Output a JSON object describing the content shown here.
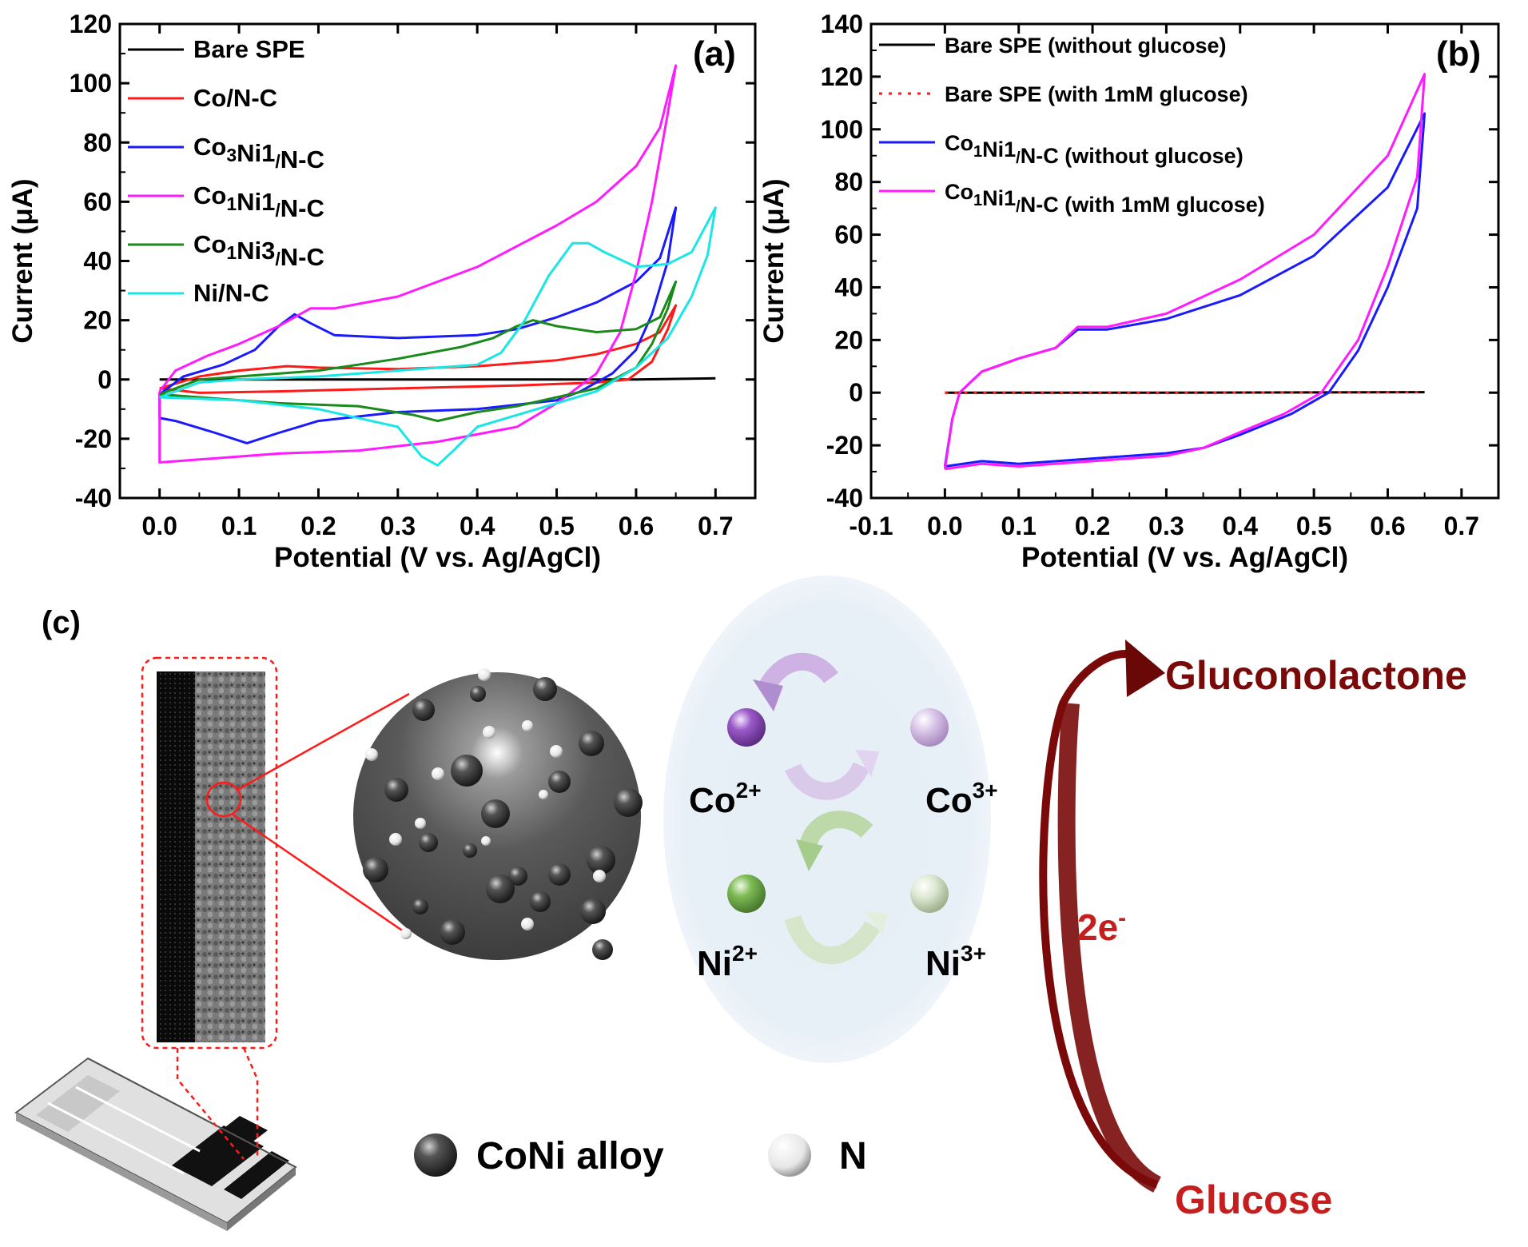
{
  "panel_c": {
    "label": "(c)",
    "legend": {
      "alloy": "CoNi alloy",
      "n": "N"
    },
    "ions": {
      "co2": "Co",
      "co2_sup": "2+",
      "co3": "Co",
      "co3_sup": "3+",
      "ni2": "Ni",
      "ni2_sup": "2+",
      "ni3": "Ni",
      "ni3_sup": "3+"
    },
    "product": "Gluconolactone",
    "reactant": "Glucose",
    "electrons": "2e",
    "electrons_sup": "-",
    "colors": {
      "dark_red": "#7a0a0a",
      "red": "#c41e1e",
      "co_ball": "#9b59c8",
      "co3_ball": "#d9c4e8",
      "ni_ball": "#7dbb55",
      "ni3_ball": "#dde8d2",
      "bubble": "#e8f0f7"
    }
  },
  "chart_data": [
    {
      "type": "line",
      "panel_label": "(a)",
      "xlabel": "Potential (V vs. Ag/AgCl)",
      "ylabel": "Current (μA)",
      "xlim": [
        -0.05,
        0.75
      ],
      "ylim": [
        -40,
        120
      ],
      "xticks": [
        0.0,
        0.1,
        0.2,
        0.3,
        0.4,
        0.5,
        0.6,
        0.7
      ],
      "xtick_labels": [
        "0.0",
        "0.1",
        "0.2",
        "0.3",
        "0.4",
        "0.5",
        "0.6",
        "0.7"
      ],
      "yticks": [
        -40,
        -20,
        0,
        20,
        40,
        60,
        80,
        100,
        120
      ],
      "ytick_labels": [
        "-40",
        "-20",
        "0",
        "20",
        "40",
        "60",
        "80",
        "100",
        "120"
      ],
      "legend": "top-left",
      "series": [
        {
          "name": "Bare SPE",
          "sub": [],
          "color": "#000000",
          "dash": "",
          "points": [
            [
              0.0,
              0
            ],
            [
              0.2,
              0
            ],
            [
              0.4,
              0
            ],
            [
              0.6,
              0
            ],
            [
              0.7,
              0.4
            ]
          ]
        },
        {
          "name": "Co/N-C",
          "sub": [],
          "color": "#ff1a1a",
          "dash": "",
          "points": [
            [
              0.0,
              -3
            ],
            [
              0.05,
              1
            ],
            [
              0.1,
              3
            ],
            [
              0.16,
              4.5
            ],
            [
              0.2,
              4
            ],
            [
              0.3,
              3.5
            ],
            [
              0.4,
              4.5
            ],
            [
              0.5,
              6.5
            ],
            [
              0.55,
              8.5
            ],
            [
              0.6,
              12
            ],
            [
              0.63,
              16
            ],
            [
              0.65,
              25
            ],
            [
              0.64,
              17
            ],
            [
              0.62,
              6
            ],
            [
              0.59,
              0
            ],
            [
              0.55,
              -1
            ],
            [
              0.45,
              -2
            ],
            [
              0.3,
              -3
            ],
            [
              0.15,
              -4
            ],
            [
              0.05,
              -4.5
            ],
            [
              0.0,
              -3
            ]
          ]
        },
        {
          "name": "Co3Ni1/N-C",
          "sub": [
            2,
            6
          ],
          "color": "#1a1aff",
          "dash": "",
          "points": [
            [
              0.0,
              -5
            ],
            [
              0.03,
              1
            ],
            [
              0.08,
              5
            ],
            [
              0.12,
              10
            ],
            [
              0.15,
              18
            ],
            [
              0.17,
              22
            ],
            [
              0.19,
              19
            ],
            [
              0.22,
              15
            ],
            [
              0.3,
              14
            ],
            [
              0.4,
              15
            ],
            [
              0.45,
              17
            ],
            [
              0.5,
              21
            ],
            [
              0.55,
              26
            ],
            [
              0.6,
              33
            ],
            [
              0.63,
              41
            ],
            [
              0.65,
              58
            ],
            [
              0.64,
              40
            ],
            [
              0.62,
              22
            ],
            [
              0.6,
              10
            ],
            [
              0.57,
              2
            ],
            [
              0.53,
              -4
            ],
            [
              0.5,
              -7
            ],
            [
              0.4,
              -10
            ],
            [
              0.3,
              -11
            ],
            [
              0.2,
              -14
            ],
            [
              0.15,
              -18
            ],
            [
              0.11,
              -21.5
            ],
            [
              0.07,
              -18
            ],
            [
              0.02,
              -14
            ],
            [
              0.0,
              -13
            ],
            [
              0.0,
              -5
            ]
          ]
        },
        {
          "name": "Co1Ni1/N-C",
          "sub": [
            2,
            6
          ],
          "color": "#ff1aff",
          "dash": "",
          "points": [
            [
              0.0,
              -4
            ],
            [
              0.02,
              3
            ],
            [
              0.06,
              8
            ],
            [
              0.1,
              12
            ],
            [
              0.15,
              18
            ],
            [
              0.19,
              24
            ],
            [
              0.22,
              24
            ],
            [
              0.3,
              28
            ],
            [
              0.4,
              38
            ],
            [
              0.5,
              52
            ],
            [
              0.55,
              60
            ],
            [
              0.6,
              72
            ],
            [
              0.63,
              85
            ],
            [
              0.65,
              106
            ],
            [
              0.64,
              90
            ],
            [
              0.62,
              60
            ],
            [
              0.6,
              36
            ],
            [
              0.58,
              16
            ],
            [
              0.55,
              2
            ],
            [
              0.5,
              -8
            ],
            [
              0.45,
              -16
            ],
            [
              0.35,
              -21
            ],
            [
              0.25,
              -24
            ],
            [
              0.15,
              -25
            ],
            [
              0.1,
              -26
            ],
            [
              0.05,
              -27
            ],
            [
              0.0,
              -28
            ],
            [
              0.0,
              -4
            ]
          ]
        },
        {
          "name": "Co1Ni3/N-C",
          "sub": [
            2,
            6
          ],
          "color": "#1a8a1a",
          "dash": "",
          "points": [
            [
              0.0,
              -5
            ],
            [
              0.05,
              0
            ],
            [
              0.1,
              1
            ],
            [
              0.2,
              3
            ],
            [
              0.3,
              7
            ],
            [
              0.38,
              11
            ],
            [
              0.42,
              14
            ],
            [
              0.45,
              18
            ],
            [
              0.47,
              20
            ],
            [
              0.5,
              18
            ],
            [
              0.55,
              16
            ],
            [
              0.6,
              17
            ],
            [
              0.63,
              21
            ],
            [
              0.65,
              33
            ],
            [
              0.64,
              24
            ],
            [
              0.62,
              12
            ],
            [
              0.6,
              4
            ],
            [
              0.55,
              -3
            ],
            [
              0.5,
              -6
            ],
            [
              0.45,
              -9
            ],
            [
              0.4,
              -11
            ],
            [
              0.35,
              -14
            ],
            [
              0.32,
              -12
            ],
            [
              0.25,
              -9
            ],
            [
              0.15,
              -8
            ],
            [
              0.05,
              -6
            ],
            [
              0.0,
              -5
            ]
          ]
        },
        {
          "name": "Ni/N-C",
          "sub": [],
          "color": "#1ae6e6",
          "dash": "",
          "points": [
            [
              0.0,
              -6
            ],
            [
              0.05,
              -1
            ],
            [
              0.1,
              0
            ],
            [
              0.2,
              1
            ],
            [
              0.3,
              3
            ],
            [
              0.4,
              5
            ],
            [
              0.43,
              9
            ],
            [
              0.46,
              20
            ],
            [
              0.49,
              35
            ],
            [
              0.52,
              46
            ],
            [
              0.54,
              46
            ],
            [
              0.56,
              43
            ],
            [
              0.6,
              38
            ],
            [
              0.64,
              39
            ],
            [
              0.67,
              43
            ],
            [
              0.7,
              58
            ],
            [
              0.69,
              42
            ],
            [
              0.67,
              28
            ],
            [
              0.64,
              14
            ],
            [
              0.6,
              4
            ],
            [
              0.55,
              -4
            ],
            [
              0.5,
              -8
            ],
            [
              0.45,
              -12
            ],
            [
              0.4,
              -16
            ],
            [
              0.37,
              -24
            ],
            [
              0.35,
              -29
            ],
            [
              0.33,
              -26
            ],
            [
              0.3,
              -16
            ],
            [
              0.2,
              -10
            ],
            [
              0.1,
              -7
            ],
            [
              0.0,
              -6
            ]
          ]
        }
      ]
    },
    {
      "type": "line",
      "panel_label": "(b)",
      "xlabel": "Potential (V vs. Ag/AgCl)",
      "ylabel": "Current (μA)",
      "xlim": [
        -0.1,
        0.75
      ],
      "ylim": [
        -40,
        140
      ],
      "xticks": [
        -0.1,
        0.0,
        0.1,
        0.2,
        0.3,
        0.4,
        0.5,
        0.6,
        0.7
      ],
      "xtick_labels": [
        "-0.1",
        "0.0",
        "0.1",
        "0.2",
        "0.3",
        "0.4",
        "0.5",
        "0.6",
        "0.7"
      ],
      "yticks": [
        -40,
        -20,
        0,
        20,
        40,
        60,
        80,
        100,
        120,
        140
      ],
      "ytick_labels": [
        "-40",
        "-20",
        "0",
        "20",
        "40",
        "60",
        "80",
        "100",
        "120",
        "140"
      ],
      "legend": "top-left",
      "series": [
        {
          "name": "Bare SPE (without glucose)",
          "sub": [],
          "color": "#000000",
          "dash": "",
          "points": [
            [
              0.0,
              0
            ],
            [
              0.3,
              0
            ],
            [
              0.65,
              0.2
            ]
          ]
        },
        {
          "name": "Bare SPE (with 1mM glucose)",
          "sub": [],
          "color": "#ff1a1a",
          "dash": "4 8",
          "points": [
            [
              0.0,
              0
            ],
            [
              0.3,
              0
            ],
            [
              0.65,
              0.2
            ]
          ]
        },
        {
          "name": "Co1Ni1/N-C (without glucose)",
          "sub": [
            2,
            6
          ],
          "color": "#1a1aff",
          "dash": "",
          "points": [
            [
              0.0,
              -28
            ],
            [
              0.01,
              -10
            ],
            [
              0.02,
              0
            ],
            [
              0.05,
              8
            ],
            [
              0.1,
              13
            ],
            [
              0.15,
              17
            ],
            [
              0.18,
              24
            ],
            [
              0.22,
              24
            ],
            [
              0.3,
              28
            ],
            [
              0.4,
              37
            ],
            [
              0.5,
              52
            ],
            [
              0.6,
              78
            ],
            [
              0.65,
              106
            ],
            [
              0.64,
              70
            ],
            [
              0.6,
              40
            ],
            [
              0.56,
              16
            ],
            [
              0.52,
              0
            ],
            [
              0.47,
              -8
            ],
            [
              0.4,
              -16
            ],
            [
              0.35,
              -21
            ],
            [
              0.3,
              -23
            ],
            [
              0.2,
              -25
            ],
            [
              0.1,
              -27
            ],
            [
              0.05,
              -26
            ],
            [
              0.0,
              -28
            ]
          ]
        },
        {
          "name": "Co1Ni1/N-C (with 1mM glucose)",
          "sub": [
            2,
            6
          ],
          "color": "#ff1aff",
          "dash": "",
          "points": [
            [
              0.0,
              -29
            ],
            [
              0.01,
              -10
            ],
            [
              0.02,
              0
            ],
            [
              0.05,
              8
            ],
            [
              0.1,
              13
            ],
            [
              0.15,
              17
            ],
            [
              0.18,
              25
            ],
            [
              0.22,
              25
            ],
            [
              0.3,
              30
            ],
            [
              0.4,
              43
            ],
            [
              0.5,
              60
            ],
            [
              0.6,
              90
            ],
            [
              0.65,
              121
            ],
            [
              0.64,
              82
            ],
            [
              0.6,
              48
            ],
            [
              0.56,
              20
            ],
            [
              0.51,
              0
            ],
            [
              0.46,
              -8
            ],
            [
              0.4,
              -15
            ],
            [
              0.35,
              -21
            ],
            [
              0.3,
              -24
            ],
            [
              0.2,
              -26
            ],
            [
              0.1,
              -28
            ],
            [
              0.05,
              -27
            ],
            [
              0.0,
              -29
            ]
          ]
        }
      ]
    }
  ]
}
